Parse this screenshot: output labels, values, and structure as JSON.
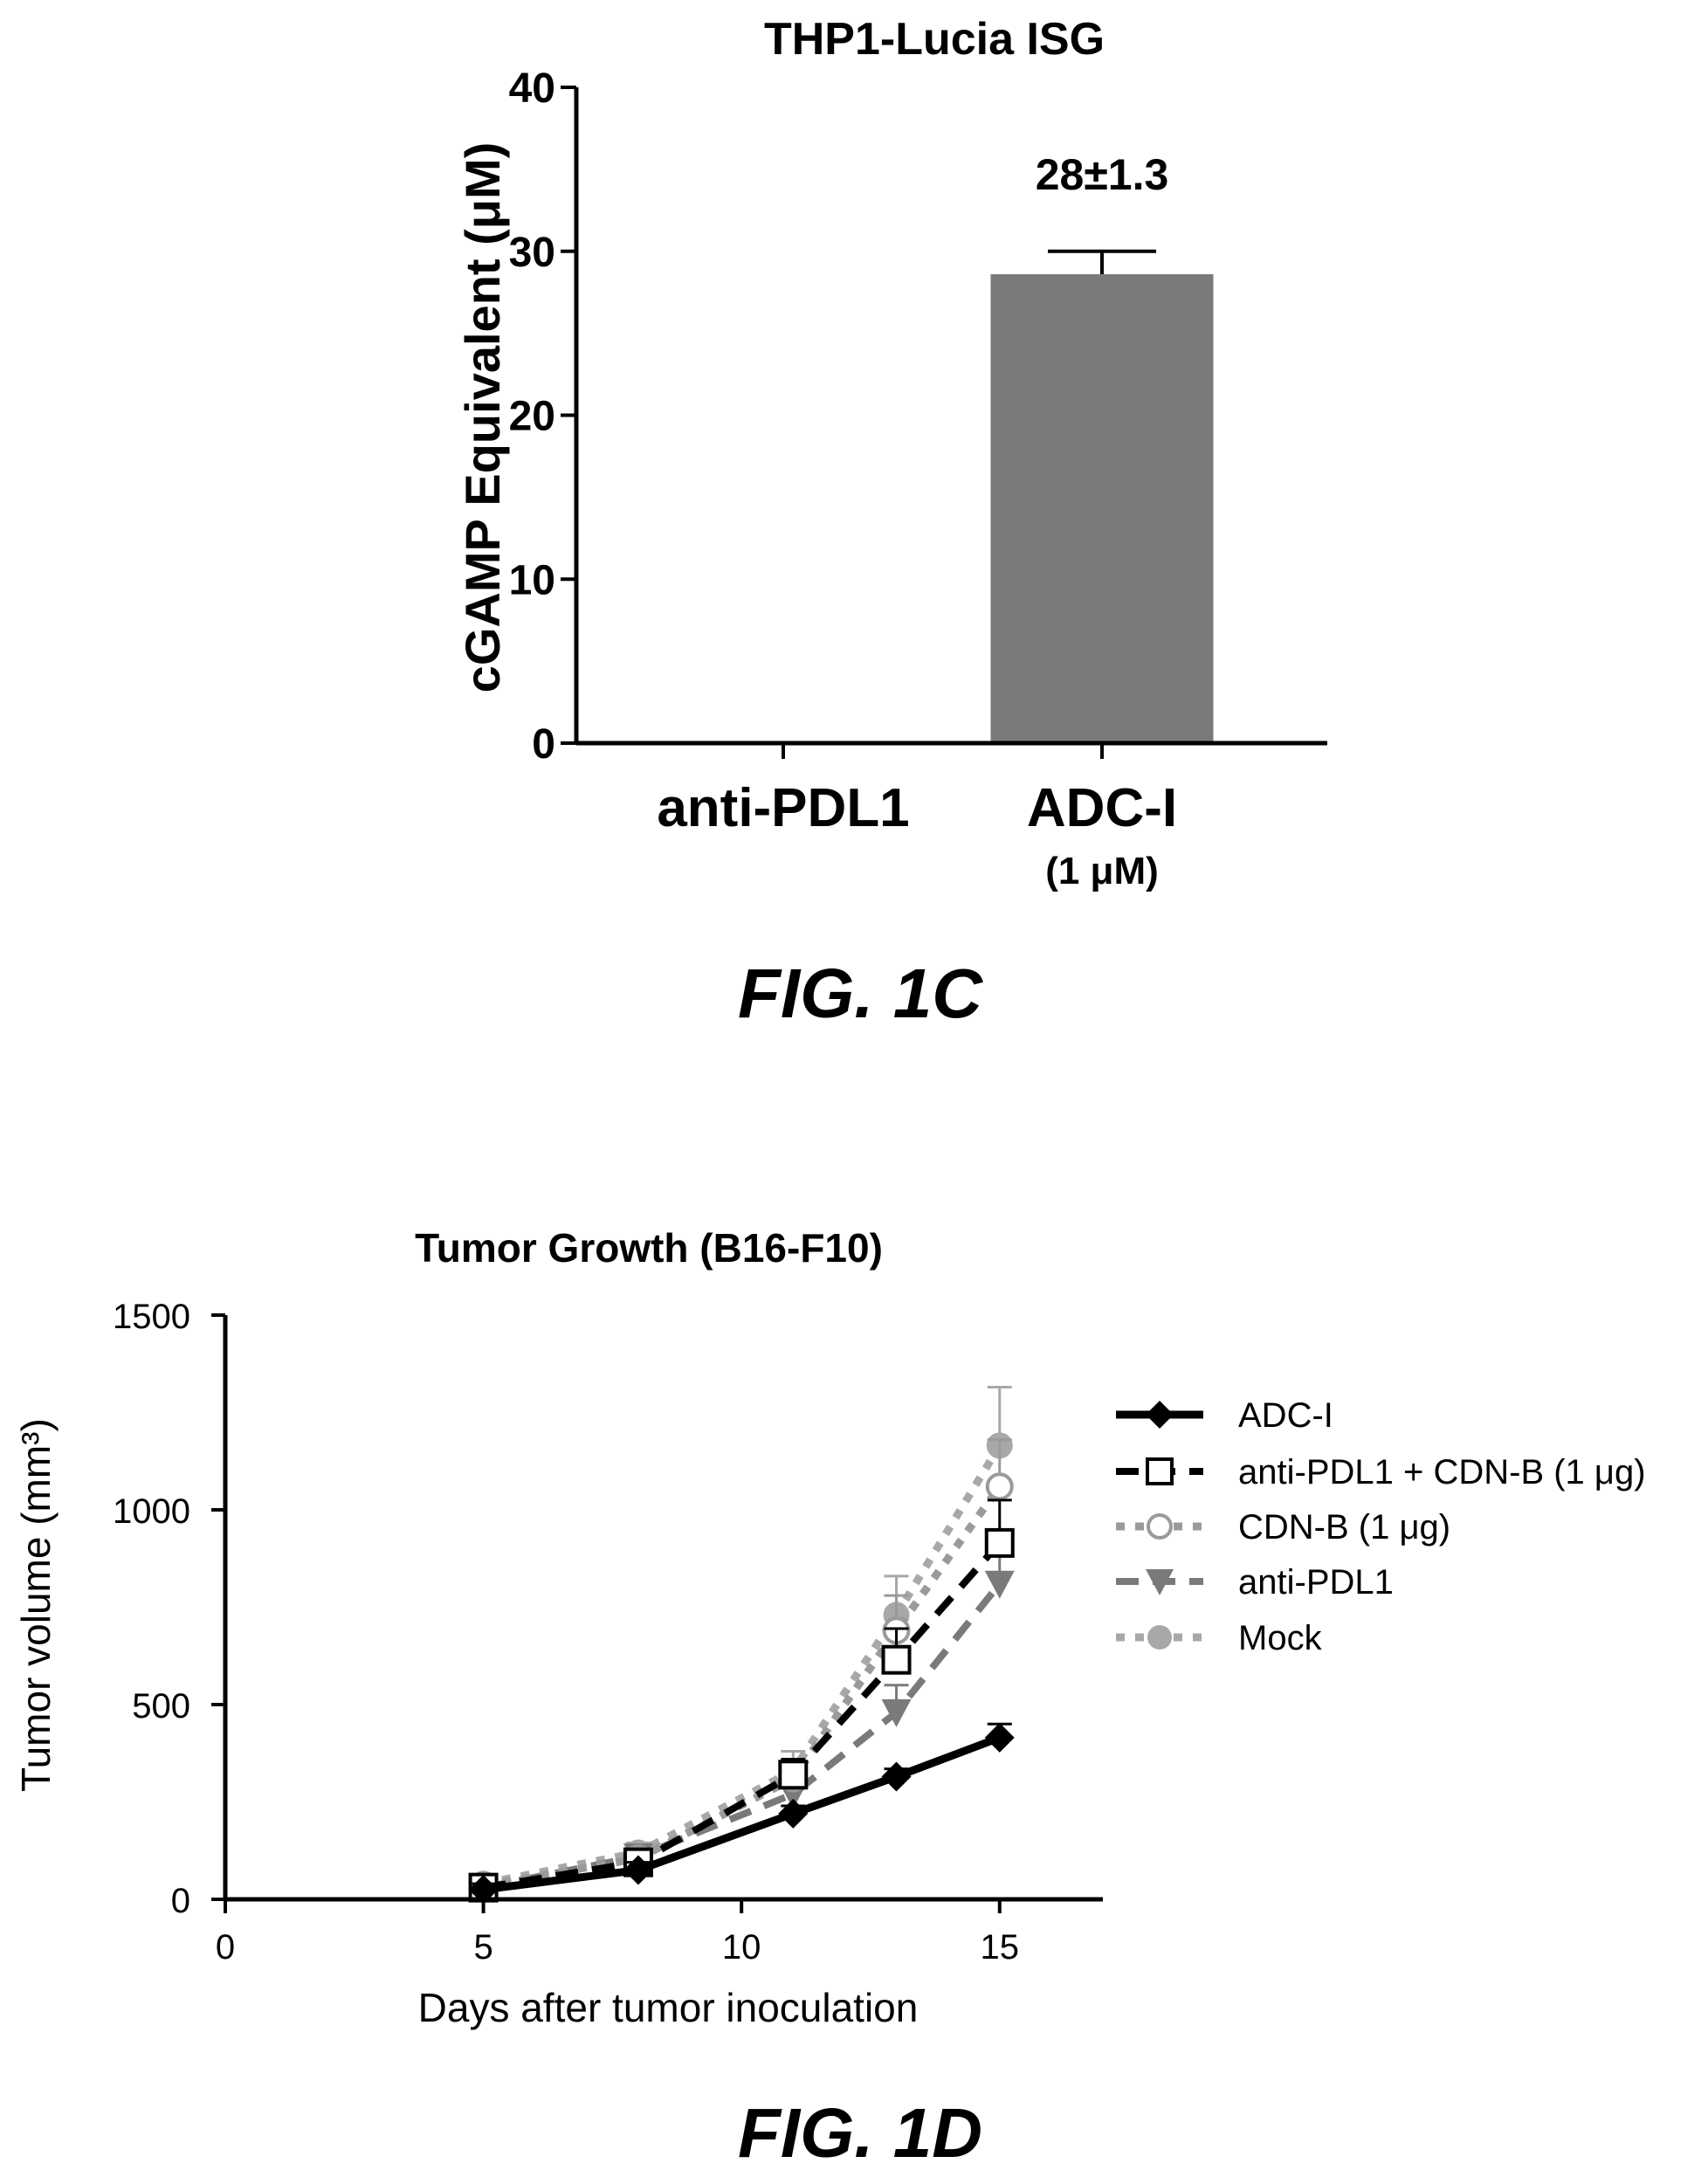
{
  "chart_data": [
    {
      "type": "bar",
      "title": "THP1-Lucia ISG",
      "ylabel": "cGAMP Equivalent (μM)",
      "ylim": [
        0,
        40
      ],
      "yticks": [
        "0",
        "10",
        "20",
        "30",
        "40"
      ],
      "categories": [
        "anti-PDL1",
        "ADC-I"
      ],
      "category_sublabels": [
        "",
        "(1 μM)"
      ],
      "values": [
        0,
        28.6
      ],
      "errors": [
        0,
        1.4
      ],
      "bar_color": "#7a7a7a",
      "annotation": "28±1.3",
      "figure_label": "FIG. 1C"
    },
    {
      "type": "line",
      "title": "Tumor Growth (B16-F10)",
      "xlabel": "Days after tumor inoculation",
      "ylabel": "Tumor volume (mm³)",
      "xlim": [
        0,
        17
      ],
      "ylim": [
        0,
        1500
      ],
      "xticks": [
        "0",
        "5",
        "10",
        "15"
      ],
      "yticks": [
        "0",
        "500",
        "1000",
        "1500"
      ],
      "legend_position": "right",
      "series": [
        {
          "name": "ADC-I",
          "x": [
            5,
            8,
            11,
            13,
            15
          ],
          "y": [
            25,
            75,
            220,
            315,
            415
          ],
          "err": [
            15,
            20,
            20,
            20,
            35
          ],
          "marker": "diamond",
          "color": "#000000",
          "line": "solid"
        },
        {
          "name": "anti-PDL1 + CDN-B (1 μg)",
          "x": [
            5,
            8,
            11,
            13,
            15
          ],
          "y": [
            30,
            95,
            320,
            615,
            915
          ],
          "err": [
            15,
            25,
            40,
            80,
            110
          ],
          "marker": "square-open",
          "color": "#000000",
          "line": "dashed"
        },
        {
          "name": "CDN-B (1 μg)",
          "x": [
            5,
            8,
            11,
            13,
            15
          ],
          "y": [
            35,
            105,
            310,
            690,
            1060
          ],
          "err": [
            15,
            25,
            40,
            90,
            120
          ],
          "marker": "circle-open",
          "color": "#9a9a9a",
          "line": "dotted"
        },
        {
          "name": "anti-PDL1",
          "x": [
            5,
            8,
            11,
            13,
            15
          ],
          "y": [
            30,
            110,
            270,
            480,
            810
          ],
          "err": [
            15,
            25,
            40,
            70,
            100
          ],
          "marker": "triangle-down",
          "color": "#7a7a7a",
          "line": "dashed"
        },
        {
          "name": "Mock",
          "x": [
            5,
            8,
            11,
            13,
            15
          ],
          "y": [
            40,
            120,
            330,
            730,
            1165
          ],
          "err": [
            15,
            25,
            50,
            100,
            150
          ],
          "marker": "circle",
          "color": "#a8a8a8",
          "line": "dotted"
        }
      ],
      "figure_label": "FIG. 1D"
    }
  ]
}
